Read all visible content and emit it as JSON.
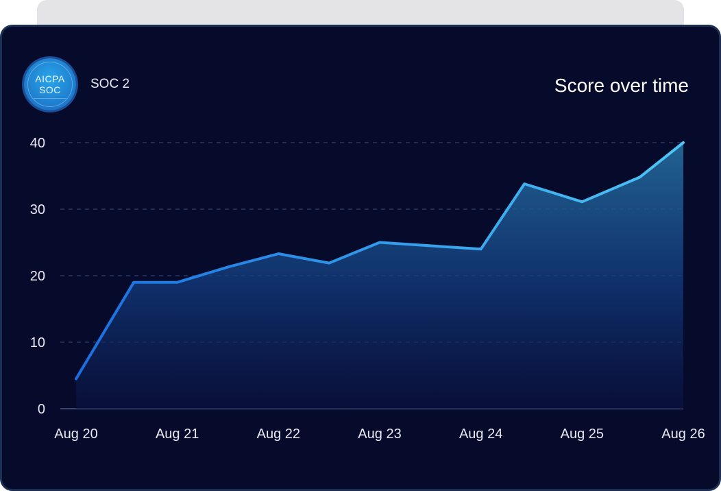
{
  "framework": {
    "badge_line1": "AICPA",
    "badge_line2": "SOC",
    "label": "SOC 2"
  },
  "colors": {
    "background": "#070b2b",
    "line_start": "#1a6fe0",
    "line_end": "#4cc6f5",
    "grid": "#2a3760"
  },
  "chart_data": {
    "type": "area",
    "title": "Score over time",
    "xlabel": "",
    "ylabel": "",
    "x_ticks": [
      "Aug 20",
      "Aug 21",
      "Aug 22",
      "Aug 23",
      "Aug 24",
      "Aug 25",
      "Aug 26"
    ],
    "y_ticks": [
      0,
      10,
      20,
      30,
      40
    ],
    "ylim": [
      0,
      40
    ],
    "xlim": [
      0,
      6
    ],
    "grid": true,
    "series": [
      {
        "x": [
          0,
          0.57,
          1,
          1.5,
          2,
          2.5,
          3,
          3.5,
          4,
          4.43,
          5,
          5.57,
          6
        ],
        "y": [
          4.5,
          19,
          19,
          21.3,
          23.3,
          21.9,
          25,
          24.5,
          24,
          33.8,
          31.1,
          34.8,
          40
        ]
      }
    ]
  }
}
